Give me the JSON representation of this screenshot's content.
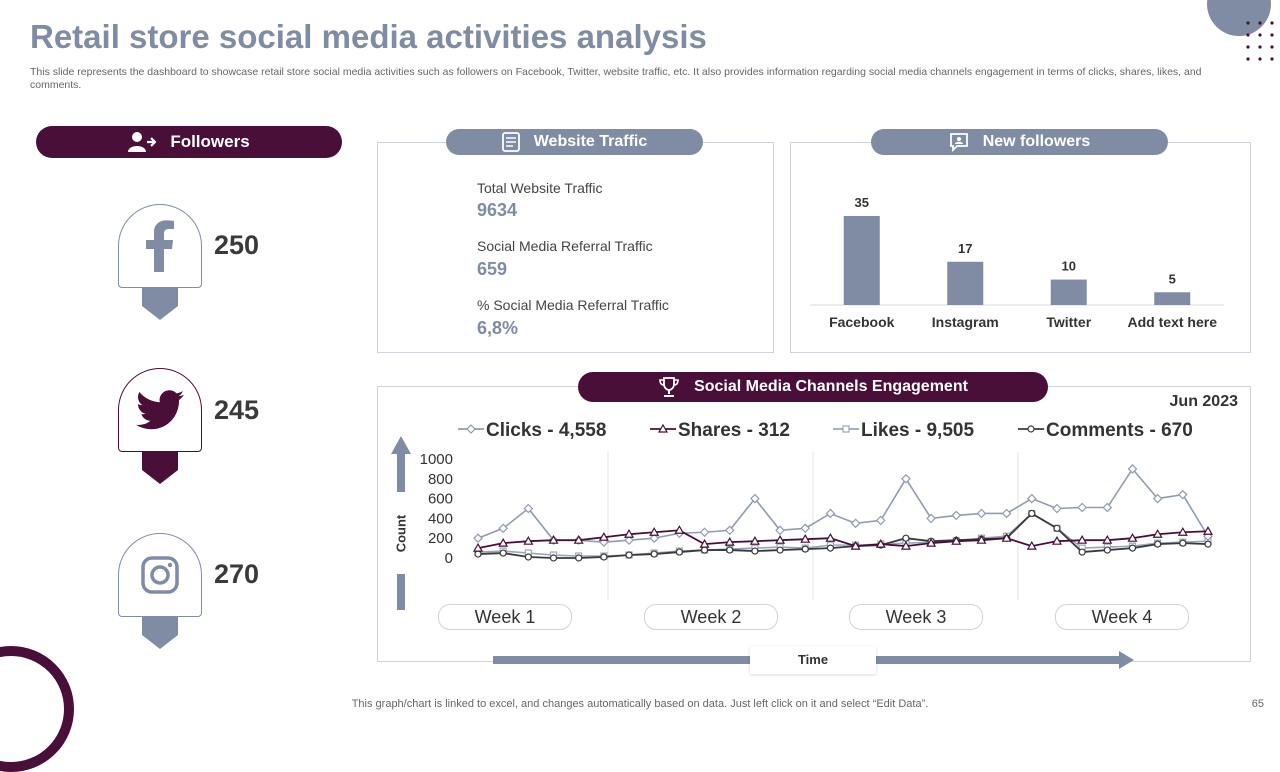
{
  "title": "Retail store social media activities analysis",
  "subtitle": "This slide represents the dashboard to showcase retail store social media activities such as followers on Facebook, Twitter, website traffic, etc. It also provides information regarding social media channels engagement in terms of clicks, shares, likes, and comments.",
  "followers": {
    "header": "Followers",
    "items": [
      {
        "icon": "facebook-icon",
        "value": "250"
      },
      {
        "icon": "twitter-icon",
        "value": "245"
      },
      {
        "icon": "instagram-icon",
        "value": "270"
      }
    ]
  },
  "website_traffic": {
    "header": "Website Traffic",
    "rows": [
      {
        "label": "Total Website Traffic",
        "value": "9634"
      },
      {
        "label": "Social Media Referral Traffic",
        "value": "659"
      },
      {
        "label": "% Social Media Referral Traffic",
        "value": "6,8%"
      }
    ]
  },
  "new_followers": {
    "header": "New followers"
  },
  "engagement": {
    "header": "Social Media Channels Engagement",
    "date": "Jun 2023",
    "y_axis_title": "Count",
    "x_axis_title": "Time"
  },
  "colors": {
    "accent_dark": "#4a0f38",
    "accent_gray": "#7f8ca3",
    "clicks": "#8f9bb0",
    "shares": "#4a0f38",
    "likes": "#9aa6b8",
    "comments": "#3a3a3a"
  },
  "chart_data": [
    {
      "type": "bar",
      "title": "New followers",
      "categories": [
        "Facebook",
        "Instagram",
        "Twitter",
        "Add text here"
      ],
      "values": [
        35,
        17,
        10,
        5
      ],
      "ylim": [
        0,
        35
      ]
    },
    {
      "type": "line",
      "title": "Social Media Channels Engagement",
      "ylabel": "Count",
      "xlabel": "Time",
      "ylim": [
        0,
        1000
      ],
      "yticks": [
        0,
        200,
        400,
        600,
        800,
        1000
      ],
      "groups": [
        "Week 1",
        "Week 2",
        "Week 3",
        "Week 4"
      ],
      "series": [
        {
          "name": "Clicks",
          "legend": "Clicks - 4,558",
          "marker": "diamond",
          "values": [
            200,
            300,
            500,
            180,
            180,
            160,
            180,
            200,
            250,
            260,
            280,
            600,
            280,
            300,
            450,
            350,
            380,
            800,
            400,
            430,
            450,
            450,
            600,
            500,
            510,
            510,
            900,
            600,
            640,
            220
          ]
        },
        {
          "name": "Shares",
          "legend": "Shares - 312",
          "marker": "triangle",
          "values": [
            100,
            150,
            170,
            180,
            180,
            210,
            240,
            260,
            280,
            140,
            160,
            170,
            180,
            190,
            200,
            120,
            140,
            120,
            150,
            170,
            180,
            200,
            120,
            170,
            180,
            180,
            200,
            240,
            260,
            270
          ]
        },
        {
          "name": "Likes",
          "legend": "Likes - 9,505",
          "marker": "square",
          "values": [
            60,
            70,
            50,
            30,
            20,
            20,
            30,
            50,
            70,
            80,
            90,
            100,
            110,
            100,
            130,
            130,
            140,
            150,
            160,
            170,
            200,
            220,
            450,
            300,
            100,
            110,
            120,
            150,
            160,
            170
          ]
        },
        {
          "name": "Comments",
          "legend": "Comments - 670",
          "marker": "circle",
          "values": [
            40,
            50,
            10,
            0,
            0,
            10,
            30,
            40,
            60,
            80,
            80,
            70,
            80,
            90,
            100,
            120,
            130,
            200,
            170,
            180,
            190,
            200,
            450,
            300,
            60,
            80,
            100,
            140,
            150,
            140
          ]
        }
      ]
    }
  ]
}
